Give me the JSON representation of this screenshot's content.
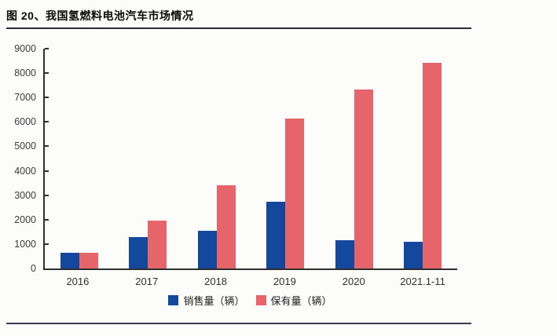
{
  "header": {
    "title": "图 20、我国氢燃料电池汽车市场情况"
  },
  "chart_data": {
    "type": "bar",
    "title": "我国氢燃料电池汽车市场情况",
    "categories": [
      "2016",
      "2017",
      "2018",
      "2019",
      "2020",
      "2021.1-11"
    ],
    "series": [
      {
        "name": "销售量（辆）",
        "color": "#14489C",
        "values": [
          630,
          1270,
          1530,
          2730,
          1160,
          1080
        ]
      },
      {
        "name": "保有量（辆）",
        "color": "#E6656B",
        "values": [
          650,
          1950,
          3420,
          6140,
          7330,
          8430
        ]
      }
    ],
    "ylim": [
      0,
      9000
    ],
    "ytick_step": 1000,
    "grid": false,
    "legend_position": "bottom",
    "axis_color": "#2f2f2f",
    "tick_label_color": "#3b3b3b"
  }
}
